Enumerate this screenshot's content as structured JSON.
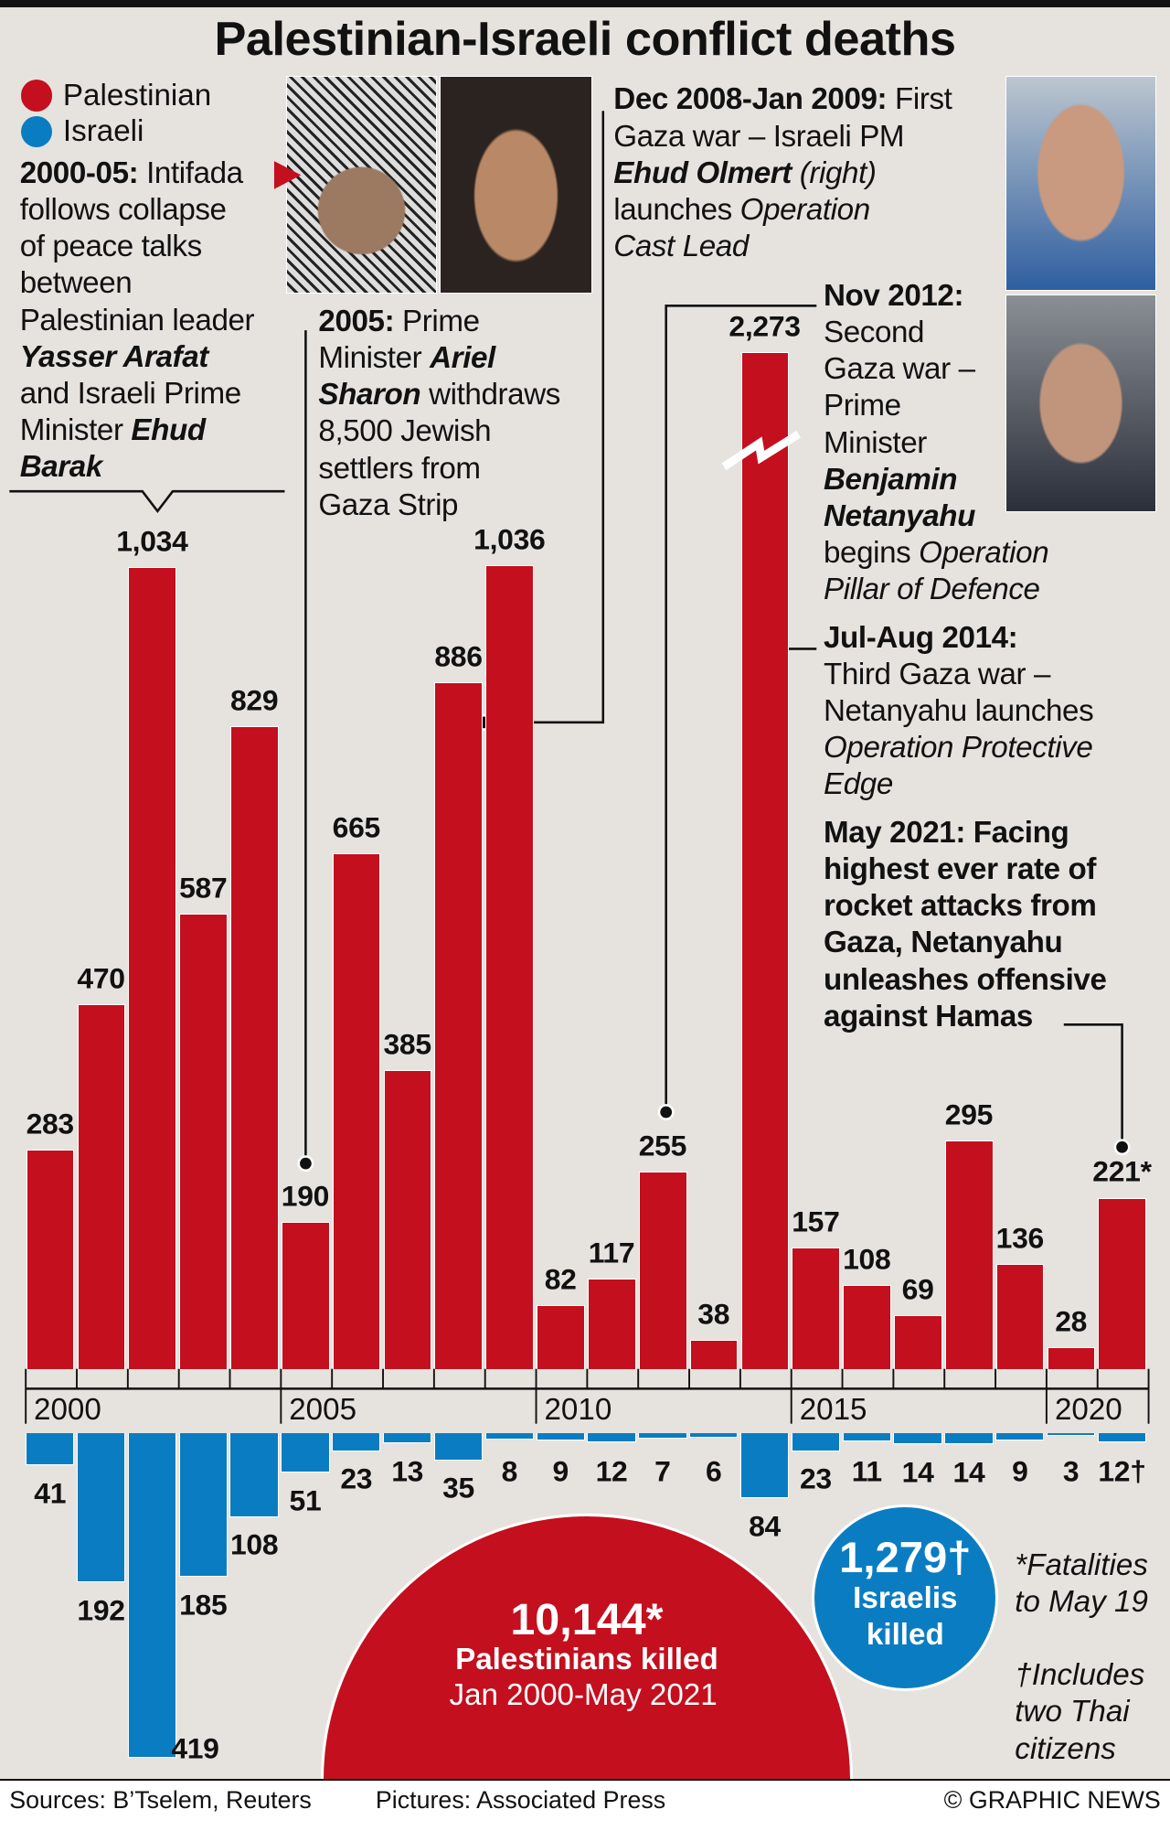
{
  "title": "Palestinian-Israeli conflict deaths",
  "legend": [
    {
      "label": "Palestinian",
      "color": "#c40f1e"
    },
    {
      "label": "Israeli",
      "color": "#0a7dc2"
    }
  ],
  "annotations": {
    "intifada": {
      "lines": [
        [
          [
            "2000-05:",
            "b"
          ],
          [
            " Intifada",
            ""
          ]
        ],
        [
          [
            "follows collapse",
            ""
          ]
        ],
        [
          [
            "of peace talks",
            ""
          ]
        ],
        [
          [
            "between",
            ""
          ]
        ],
        [
          [
            "Palestinian leader",
            ""
          ]
        ],
        [
          [
            "Yasser Arafat",
            "bi"
          ]
        ],
        [
          [
            "and Israeli Prime",
            ""
          ]
        ],
        [
          [
            "Minister ",
            ""
          ],
          [
            "Ehud",
            "bi"
          ]
        ],
        [
          [
            "Barak",
            "bi"
          ]
        ]
      ]
    },
    "sharon": {
      "lines": [
        [
          [
            "2005:",
            "b"
          ],
          [
            " Prime",
            ""
          ]
        ],
        [
          [
            "Minister ",
            ""
          ],
          [
            "Ariel",
            "bi"
          ]
        ],
        [
          [
            "Sharon",
            "bi"
          ],
          [
            " withdraws",
            ""
          ]
        ],
        [
          [
            "8,500 Jewish",
            ""
          ]
        ],
        [
          [
            "settlers from",
            ""
          ]
        ],
        [
          [
            "Gaza Strip",
            ""
          ]
        ]
      ]
    },
    "castlead": {
      "lines": [
        [
          [
            "Dec 2008-Jan 2009:",
            "b"
          ],
          [
            " First",
            ""
          ]
        ],
        [
          [
            "Gaza war – Israeli PM",
            ""
          ]
        ],
        [
          [
            "Ehud Olmert",
            "bi"
          ],
          [
            " (right)",
            "i"
          ]
        ],
        [
          [
            "launches ",
            ""
          ],
          [
            "Operation",
            "i"
          ]
        ],
        [
          [
            "Cast Lead",
            "i"
          ]
        ]
      ]
    },
    "pillar": {
      "lines": [
        [
          [
            "Nov 2012:",
            "b"
          ]
        ],
        [
          [
            "Second",
            ""
          ]
        ],
        [
          [
            "Gaza war –",
            ""
          ]
        ],
        [
          [
            "Prime",
            ""
          ]
        ],
        [
          [
            "Minister",
            ""
          ]
        ],
        [
          [
            "Benjamin",
            "bi"
          ]
        ],
        [
          [
            "Netanyahu",
            "bi"
          ]
        ],
        [
          [
            "begins ",
            ""
          ],
          [
            "Operation",
            "i"
          ]
        ],
        [
          [
            "Pillar of Defence",
            "i"
          ]
        ]
      ]
    },
    "protective": {
      "lines": [
        [
          [
            "Jul-Aug 2014:",
            "b"
          ]
        ],
        [
          [
            "Third Gaza war –",
            ""
          ]
        ],
        [
          [
            "Netanyahu launches",
            ""
          ]
        ],
        [
          [
            "Operation Protective",
            "i"
          ]
        ],
        [
          [
            "Edge",
            "i"
          ]
        ]
      ]
    },
    "may2021": {
      "lines": [
        [
          [
            "May 2021: Facing",
            "b"
          ]
        ],
        [
          [
            "highest ever rate of",
            "b"
          ]
        ],
        [
          [
            "rocket attacks from",
            "b"
          ]
        ],
        [
          [
            "Gaza, Netanyahu",
            "b"
          ]
        ],
        [
          [
            "unleashes offensive",
            "b"
          ]
        ],
        [
          [
            "against Hamas",
            "b"
          ]
        ]
      ]
    }
  },
  "totals": {
    "palestinian_value": "10,144*",
    "palestinian_label": "Palestinians killed",
    "palestinian_period": "Jan 2000-May 2021",
    "israeli_value": "1,279†",
    "israeli_label1": "Israelis",
    "israeli_label2": "killed"
  },
  "footnotes": {
    "fatalities": [
      "*Fatalities",
      "to May 19"
    ],
    "includes": [
      "†Includes",
      "two Thai",
      "citizens"
    ]
  },
  "footer": {
    "sources": "Sources: B’Tselem, Reuters",
    "pictures": "Pictures: Associated Press",
    "credit": "© GRAPHIC NEWS"
  },
  "chart_data": {
    "type": "bar",
    "title": "Palestinian-Israeli conflict deaths",
    "categories": [
      "2000",
      "2001",
      "2002",
      "2003",
      "2004",
      "2005",
      "2006",
      "2007",
      "2008",
      "2009",
      "2010",
      "2011",
      "2012",
      "2013",
      "2014",
      "2015",
      "2016",
      "2017",
      "2018",
      "2019",
      "2020",
      "2021"
    ],
    "x_tick_labels": [
      "2000",
      "2005",
      "2010",
      "2015",
      "2020"
    ],
    "axis_break": "2014 Palestinian bar truncated",
    "series": [
      {
        "name": "Palestinian",
        "color": "#c40f1e",
        "direction": "up",
        "values": [
          283,
          470,
          1034,
          587,
          829,
          190,
          665,
          385,
          886,
          1036,
          82,
          117,
          255,
          38,
          2273,
          157,
          108,
          69,
          295,
          136,
          28,
          221
        ],
        "labels": [
          "283",
          "470",
          "1,034",
          "587",
          "829",
          "190",
          "665",
          "385",
          "886",
          "1,036",
          "82",
          "117",
          "255",
          "38",
          "2,273",
          "157",
          "108",
          "69",
          "295",
          "136",
          "28",
          "221*"
        ]
      },
      {
        "name": "Israeli",
        "color": "#0a7dc2",
        "direction": "down",
        "values": [
          41,
          192,
          419,
          185,
          108,
          51,
          23,
          13,
          35,
          8,
          9,
          12,
          7,
          6,
          84,
          23,
          11,
          14,
          14,
          9,
          3,
          12
        ],
        "labels": [
          "41",
          "192",
          "419",
          "185",
          "108",
          "51",
          "23",
          "13",
          "35",
          "8",
          "9",
          "12",
          "7",
          "6",
          "84",
          "23",
          "11",
          "14",
          "14",
          "9",
          "3",
          "12†"
        ]
      }
    ],
    "grid": false
  }
}
